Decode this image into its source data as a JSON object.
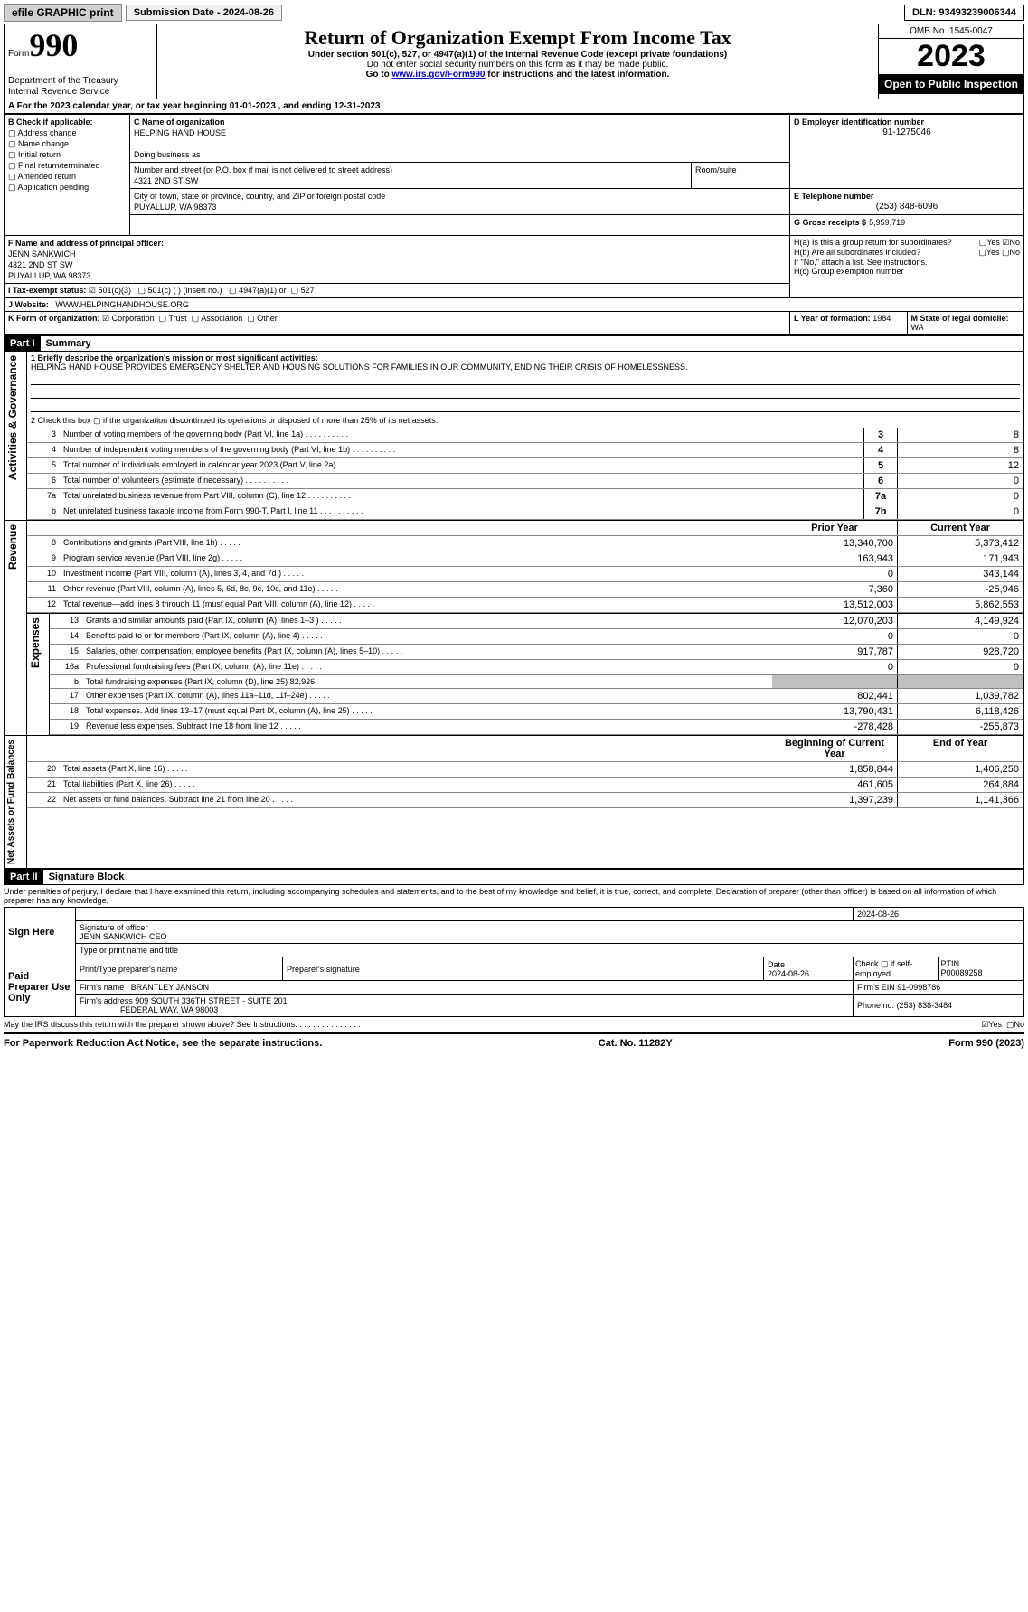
{
  "topbar": {
    "efile": "efile GRAPHIC print",
    "submission": "Submission Date - 2024-08-26",
    "dln": "DLN: 93493239006344"
  },
  "header": {
    "form_label": "Form",
    "form_num": "990",
    "title": "Return of Organization Exempt From Income Tax",
    "subtitle": "Under section 501(c), 527, or 4947(a)(1) of the Internal Revenue Code (except private foundations)",
    "ssn_note": "Do not enter social security numbers on this form as it may be made public.",
    "goto_pre": "Go to ",
    "goto_link": "www.irs.gov/Form990",
    "goto_post": " for instructions and the latest information.",
    "omb": "OMB No. 1545-0047",
    "year": "2023",
    "open": "Open to Public Inspection",
    "dept1": "Department of the Treasury",
    "dept2": "Internal Revenue Service"
  },
  "sectionA": {
    "line": "A For the 2023 calendar year, or tax year beginning 01-01-2023    , and ending 12-31-2023"
  },
  "sectionB": {
    "label": "B Check if applicable:",
    "opts": [
      "Address change",
      "Name change",
      "Initial return",
      "Final return/terminated",
      "Amended return",
      "Application pending"
    ]
  },
  "sectionC": {
    "name_label": "C Name of organization",
    "name": "HELPING HAND HOUSE",
    "dba_label": "Doing business as",
    "addr_label": "Number and street (or P.O. box if mail is not delivered to street address)",
    "room_label": "Room/suite",
    "addr": "4321 2ND ST SW",
    "city_label": "City or town, state or province, country, and ZIP or foreign postal code",
    "city": "PUYALLUP, WA  98373"
  },
  "sectionD": {
    "label": "D Employer identification number",
    "val": "91-1275046"
  },
  "sectionE": {
    "label": "E Telephone number",
    "val": "(253) 848-6096"
  },
  "sectionG": {
    "label": "G Gross receipts $",
    "val": "5,959,719"
  },
  "sectionF": {
    "label": "F Name and address of principal officer:",
    "name": "JENN SANKWICH",
    "addr1": "4321 2ND ST SW",
    "addr2": "PUYALLUP, WA  98373"
  },
  "sectionH": {
    "ha": "H(a)  Is this a group return for subordinates?",
    "hb": "H(b)  Are all subordinates included?",
    "hb_note": "If \"No,\" attach a list. See instructions.",
    "hc": "H(c)  Group exemption number",
    "yes": "Yes",
    "no": "No"
  },
  "sectionI": {
    "label": "I  Tax-exempt status:",
    "c3": "501(c)(3)",
    "c": "501(c) (  ) (insert no.)",
    "a1": "4947(a)(1) or",
    "s527": "527"
  },
  "sectionJ": {
    "label": "J  Website:",
    "val": "WWW.HELPINGHANDHOUSE.ORG"
  },
  "sectionK": {
    "label": "K Form of organization:",
    "corp": "Corporation",
    "trust": "Trust",
    "assoc": "Association",
    "other": "Other"
  },
  "sectionL": {
    "label": "L Year of formation:",
    "val": "1984"
  },
  "sectionM": {
    "label": "M State of legal domicile:",
    "val": "WA"
  },
  "parts": {
    "p1": "Part I",
    "p1_title": "Summary",
    "p2": "Part II",
    "p2_title": "Signature Block"
  },
  "summary": {
    "l1_label": "1  Briefly describe the organization's mission or most significant activities:",
    "l1_text": "HELPING HAND HOUSE PROVIDES EMERGENCY SHELTER AND HOUSING SOLUTIONS FOR FAMILIES IN OUR COMMUNITY, ENDING THEIR CRISIS OF HOMELESSNESS.",
    "l2": "2   Check this box ▢ if the organization discontinued its operations or disposed of more than 25% of its net assets.",
    "rows_a": [
      {
        "n": "3",
        "t": "Number of voting members of the governing body (Part VI, line 1a)",
        "b": "3",
        "v": "8"
      },
      {
        "n": "4",
        "t": "Number of independent voting members of the governing body (Part VI, line 1b)",
        "b": "4",
        "v": "8"
      },
      {
        "n": "5",
        "t": "Total number of individuals employed in calendar year 2023 (Part V, line 2a)",
        "b": "5",
        "v": "12"
      },
      {
        "n": "6",
        "t": "Total number of volunteers (estimate if necessary)",
        "b": "6",
        "v": "0"
      },
      {
        "n": "7a",
        "t": "Total unrelated business revenue from Part VIII, column (C), line 12",
        "b": "7a",
        "v": "0"
      },
      {
        "n": "b",
        "t": "Net unrelated business taxable income from Form 990-T, Part I, line 11",
        "b": "7b",
        "v": "0"
      }
    ],
    "prior": "Prior Year",
    "current": "Current Year",
    "revenue": [
      {
        "n": "8",
        "t": "Contributions and grants (Part VIII, line 1h)",
        "p": "13,340,700",
        "c": "5,373,412"
      },
      {
        "n": "9",
        "t": "Program service revenue (Part VIII, line 2g)",
        "p": "163,943",
        "c": "171,943"
      },
      {
        "n": "10",
        "t": "Investment income (Part VIII, column (A), lines 3, 4, and 7d )",
        "p": "0",
        "c": "343,144"
      },
      {
        "n": "11",
        "t": "Other revenue (Part VIII, column (A), lines 5, 6d, 8c, 9c, 10c, and 11e)",
        "p": "7,360",
        "c": "-25,946"
      },
      {
        "n": "12",
        "t": "Total revenue—add lines 8 through 11 (must equal Part VIII, column (A), line 12)",
        "p": "13,512,003",
        "c": "5,862,553"
      }
    ],
    "expenses": [
      {
        "n": "13",
        "t": "Grants and similar amounts paid (Part IX, column (A), lines 1–3 )",
        "p": "12,070,203",
        "c": "4,149,924"
      },
      {
        "n": "14",
        "t": "Benefits paid to or for members (Part IX, column (A), line 4)",
        "p": "0",
        "c": "0"
      },
      {
        "n": "15",
        "t": "Salaries, other compensation, employee benefits (Part IX, column (A), lines 5–10)",
        "p": "917,787",
        "c": "928,720"
      },
      {
        "n": "16a",
        "t": "Professional fundraising fees (Part IX, column (A), line 11e)",
        "p": "0",
        "c": "0"
      },
      {
        "n": "b",
        "t": "Total fundraising expenses (Part IX, column (D), line 25) 82,926",
        "p": "",
        "c": "",
        "shaded": true
      },
      {
        "n": "17",
        "t": "Other expenses (Part IX, column (A), lines 11a–11d, 11f–24e)",
        "p": "802,441",
        "c": "1,039,782"
      },
      {
        "n": "18",
        "t": "Total expenses. Add lines 13–17 (must equal Part IX, column (A), line 25)",
        "p": "13,790,431",
        "c": "6,118,426"
      },
      {
        "n": "19",
        "t": "Revenue less expenses. Subtract line 18 from line 12",
        "p": "-278,428",
        "c": "-255,873"
      }
    ],
    "begin": "Beginning of Current Year",
    "end": "End of Year",
    "netassets": [
      {
        "n": "20",
        "t": "Total assets (Part X, line 16)",
        "p": "1,858,844",
        "c": "1,406,250"
      },
      {
        "n": "21",
        "t": "Total liabilities (Part X, line 26)",
        "p": "461,605",
        "c": "264,884"
      },
      {
        "n": "22",
        "t": "Net assets or fund balances. Subtract line 21 from line 20",
        "p": "1,397,239",
        "c": "1,141,366"
      }
    ]
  },
  "vlabels": {
    "gov": "Activities & Governance",
    "rev": "Revenue",
    "exp": "Expenses",
    "net": "Net Assets or Fund Balances"
  },
  "sig": {
    "perjury": "Under penalties of perjury, I declare that I have examined this return, including accompanying schedules and statements, and to the best of my knowledge and belief, it is true, correct, and complete. Declaration of preparer (other than officer) is based on all information of which preparer has any knowledge.",
    "sign_here": "Sign Here",
    "sig_officer": "Signature of officer",
    "officer": "JENN SANKWICH  CEO",
    "type_name": "Type or print name and title",
    "date_label": "Date",
    "date": "2024-08-26",
    "paid": "Paid Preparer Use Only",
    "prep_name_label": "Print/Type preparer's name",
    "prep_sig_label": "Preparer's signature",
    "prep_date": "2024-08-26",
    "check": "Check ▢ if self-employed",
    "ptin_label": "PTIN",
    "ptin": "P00089258",
    "firm_name_label": "Firm's name",
    "firm_name": "BRANTLEY JANSON",
    "firm_ein_label": "Firm's EIN",
    "firm_ein": "91-0998786",
    "firm_addr_label": "Firm's address",
    "firm_addr1": "909 SOUTH 336TH STREET - SUITE 201",
    "firm_addr2": "FEDERAL WAY, WA  98003",
    "phone_label": "Phone no.",
    "phone": "(253) 838-3484",
    "discuss": "May the IRS discuss this return with the preparer shown above? See Instructions."
  },
  "footer": {
    "paperwork": "For Paperwork Reduction Act Notice, see the separate instructions.",
    "cat": "Cat. No. 11282Y",
    "form": "Form 990 (2023)"
  }
}
